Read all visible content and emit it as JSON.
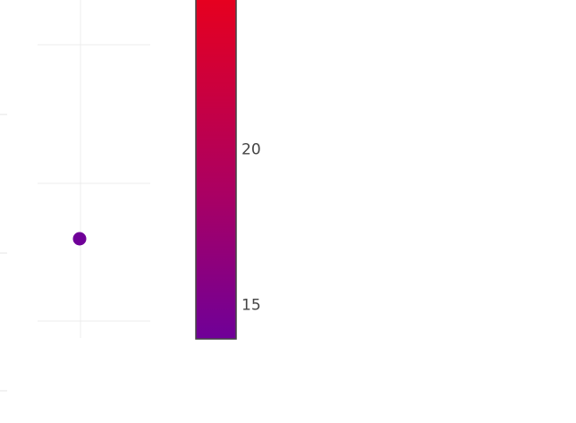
{
  "chart_data": {
    "type": "scatter",
    "title": "",
    "xlabel": "",
    "ylabel": "",
    "grid": true,
    "points": [
      {
        "color_value": 13.7
      }
    ],
    "colorbar": {
      "ticks": [
        {
          "value": 20,
          "label": "20"
        },
        {
          "value": 15,
          "label": "15"
        }
      ],
      "colorscale": [
        "#6f0098",
        "#ad0060",
        "#e6001f"
      ],
      "range": [
        13.9,
        24.8
      ]
    },
    "colors": {
      "grid": "#ececec",
      "marker": "#6f0098",
      "colorbar_border": "#444444",
      "tick_text": "#444444"
    }
  }
}
